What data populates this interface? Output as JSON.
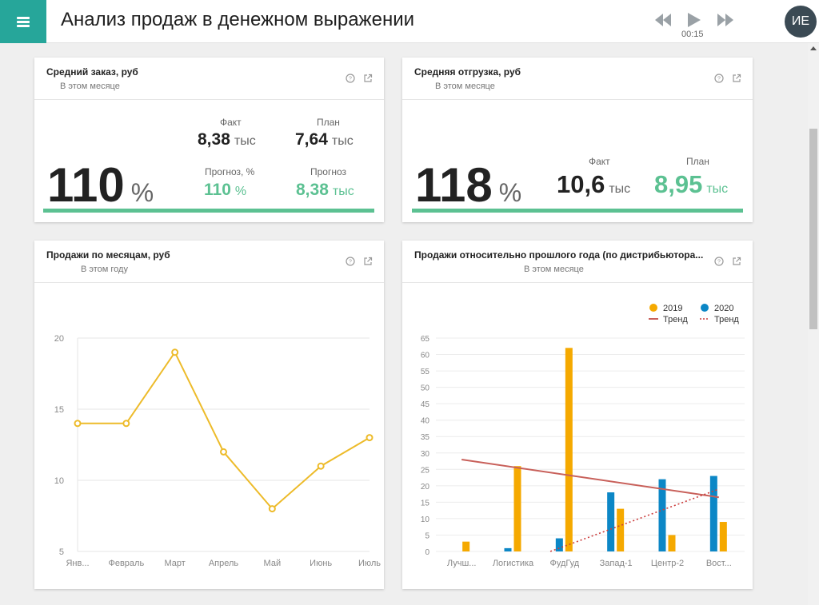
{
  "header": {
    "title": "Анализ продаж в денежном выражении",
    "timer": "00:15",
    "avatar_initials": "ИЕ",
    "accent_color": "#26a69a"
  },
  "icons": {
    "menu": "hamburger-icon",
    "rewind": "rewind-icon",
    "play": "play-icon",
    "forward": "fast-forward-icon",
    "help": "help-icon",
    "open": "external-link-icon"
  },
  "cards": {
    "avg_order": {
      "title": "Средний заказ, руб",
      "subtitle": "В этом месяце",
      "percent": "110",
      "percent_unit": "%",
      "fact_label": "Факт",
      "fact_value": "8,38",
      "fact_unit": "тыс",
      "plan_label": "План",
      "plan_value": "7,64",
      "plan_unit": "тыс",
      "forecast_pct_label": "Прогноз, %",
      "forecast_pct_value": "110",
      "forecast_pct_unit": "%",
      "forecast_label": "Прогноз",
      "forecast_value": "8,38",
      "forecast_unit": "тыс",
      "progress": 1.0
    },
    "avg_shipment": {
      "title": "Средняя отгрузка, руб",
      "subtitle": "В этом месяце",
      "percent": "118",
      "percent_unit": "%",
      "fact_label": "Факт",
      "fact_value": "10,6",
      "fact_unit": "тыс",
      "plan_label": "План",
      "plan_value": "8,95",
      "plan_unit": "тыс",
      "progress": 1.0
    },
    "sales_by_month": {
      "title": "Продажи по месяцам, руб",
      "subtitle": "В этом году"
    },
    "sales_vs_last_year": {
      "title": "Продажи относительно прошлого года (по дистрибьютора...",
      "subtitle": "В этом месяце"
    }
  },
  "colors": {
    "green": "#5cc192",
    "orange": "#f5a900",
    "blue": "#0c87c6",
    "line": "#edbb2a",
    "trend_2019": "#c8605a",
    "trend_2020": "#cc3d3d"
  },
  "chart_data": [
    {
      "type": "line",
      "categories": [
        "Янв...",
        "Февраль",
        "Март",
        "Апрель",
        "Май",
        "Июнь",
        "Июль"
      ],
      "series": [
        {
          "values": [
            14,
            14,
            19,
            12,
            8,
            11,
            13
          ]
        }
      ],
      "yticks": [
        "5",
        "10",
        "15",
        "20"
      ],
      "ylim": [
        5,
        20
      ],
      "grid": true
    },
    {
      "type": "bar",
      "categories": [
        "Лучш...",
        "Логистика",
        "ФудГуд",
        "Запад-1",
        "Центр-2",
        "Вост..."
      ],
      "series": [
        {
          "name": "2019",
          "values": [
            3,
            26,
            62,
            13,
            5,
            9
          ]
        },
        {
          "name": "2020",
          "values": [
            0,
            1,
            4,
            18,
            22,
            23
          ]
        }
      ],
      "trends": [
        {
          "name": "Тренд",
          "from": 28,
          "to": 16.5
        },
        {
          "name": "Тренд",
          "from": -10,
          "to": 19
        }
      ],
      "yticks": [
        "0",
        "5",
        "10",
        "15",
        "20",
        "25",
        "30",
        "35",
        "40",
        "45",
        "50",
        "55",
        "60",
        "65"
      ],
      "ylim": [
        0,
        65
      ],
      "legend": "top-right",
      "grid": true
    }
  ]
}
